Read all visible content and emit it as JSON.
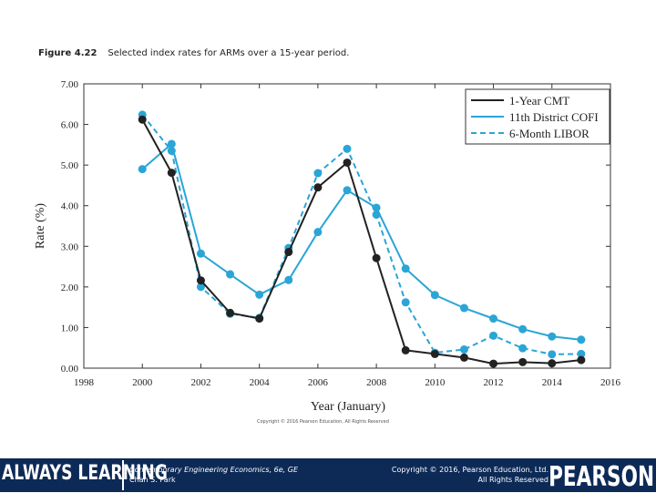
{
  "caption": {
    "figure_label": "Figure 4.22",
    "figure_text": "Selected index rates for ARMs over a 15-year period."
  },
  "chart_data": {
    "type": "line",
    "xlabel": "Year (January)",
    "ylabel": "Rate (%)",
    "xlim": [
      1998,
      2016
    ],
    "ylim": [
      0,
      7
    ],
    "x_ticks": [
      "1998",
      "2000",
      "2002",
      "2004",
      "2006",
      "2008",
      "2010",
      "2012",
      "2014",
      "2016"
    ],
    "y_ticks": [
      "0.00",
      "1.00",
      "2.00",
      "3.00",
      "4.00",
      "5.00",
      "6.00",
      "7.00"
    ],
    "grid": false,
    "legend_position": "top-right",
    "x": [
      2000,
      2001,
      2002,
      2003,
      2004,
      2005,
      2006,
      2007,
      2008,
      2009,
      2010,
      2011,
      2012,
      2013,
      2014,
      2015
    ],
    "series": [
      {
        "name": "1-Year CMT",
        "color": "#222222",
        "style": "solid",
        "values": [
          6.12,
          4.81,
          2.16,
          1.36,
          1.22,
          2.86,
          4.45,
          5.06,
          2.71,
          0.44,
          0.35,
          0.26,
          0.11,
          0.15,
          0.12,
          0.2
        ]
      },
      {
        "name": "11th District COFI",
        "color": "#2aa5d6",
        "style": "solid",
        "values": [
          4.9,
          5.52,
          2.82,
          2.31,
          1.81,
          2.17,
          3.35,
          4.38,
          3.95,
          2.45,
          1.8,
          1.48,
          1.22,
          0.96,
          0.78,
          0.7
        ]
      },
      {
        "name": "6-Month LIBOR",
        "color": "#2aa5d6",
        "style": "dashed",
        "values": [
          6.24,
          5.35,
          2.0,
          1.34,
          1.24,
          2.96,
          4.8,
          5.4,
          3.78,
          1.62,
          0.38,
          0.46,
          0.8,
          0.49,
          0.34,
          0.35
        ]
      }
    ]
  },
  "small_copyright": "Copyright © 2016 Pearson Education, All Rights Reserved",
  "footer": {
    "always_learning": "ALWAYS LEARNING",
    "book_title": "Contemporary Engineering Economics, 6e, GE",
    "author": "Chan S. Park",
    "rights_line1": "Copyright © 2016, Pearson Education, Ltd.",
    "rights_line2": "All Rights Reserved",
    "brand": "PEARSON"
  }
}
